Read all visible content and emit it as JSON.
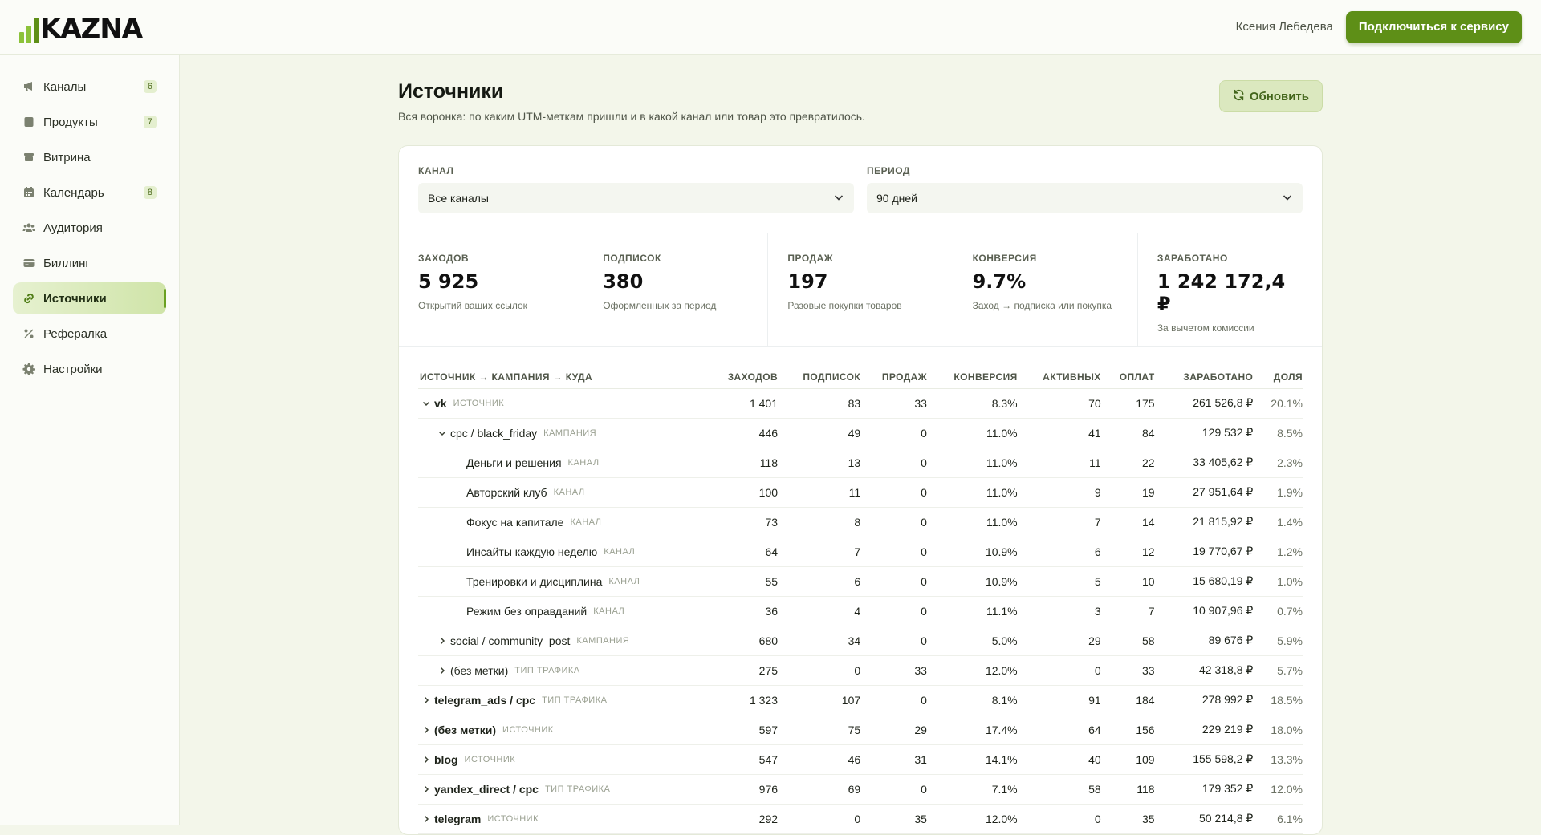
{
  "header": {
    "logo_text": "KAZNA",
    "user_name": "Ксения Лебедева",
    "connect_label": "Подключиться к сервису"
  },
  "sidebar": {
    "items": [
      {
        "label": "Каналы",
        "icon": "megaphone-icon",
        "badge": "6"
      },
      {
        "label": "Продукты",
        "icon": "box-icon",
        "badge": "7"
      },
      {
        "label": "Витрина",
        "icon": "storefront-icon",
        "badge": ""
      },
      {
        "label": "Календарь",
        "icon": "calendar-icon",
        "badge": "8"
      },
      {
        "label": "Аудитория",
        "icon": "users-icon",
        "badge": ""
      },
      {
        "label": "Биллинг",
        "icon": "credit-card-icon",
        "badge": ""
      },
      {
        "label": "Источники",
        "icon": "link-icon",
        "badge": "",
        "active": true
      },
      {
        "label": "Рефералка",
        "icon": "percent-icon",
        "badge": ""
      },
      {
        "label": "Настройки",
        "icon": "gear-icon",
        "badge": ""
      }
    ]
  },
  "page": {
    "title": "Источники",
    "subtitle": "Вся воронка: по каким UTM-меткам пришли и в какой канал или товар это превратилось.",
    "refresh_label": "Обновить"
  },
  "filters": {
    "channel_label": "КАНАЛ",
    "channel_value": "Все каналы",
    "period_label": "ПЕРИОД",
    "period_value": "90 дней"
  },
  "kpis": [
    {
      "label": "ЗАХОДОВ",
      "value": "5 925",
      "desc": "Открытий ваших ссылок"
    },
    {
      "label": "ПОДПИСОК",
      "value": "380",
      "desc": "Оформленных за период"
    },
    {
      "label": "ПРОДАЖ",
      "value": "197",
      "desc": "Разовые покупки товаров"
    },
    {
      "label": "КОНВЕРСИЯ",
      "value": "9.7%",
      "desc": "Заход → подписка или покупка"
    },
    {
      "label": "ЗАРАБОТАНО",
      "value": "1 242 172,4 ₽",
      "desc": "За вычетом комиссии"
    }
  ],
  "table": {
    "columns": [
      "ИСТОЧНИК → КАМПАНИЯ → КУДА",
      "ЗАХОДОВ",
      "ПОДПИСОК",
      "ПРОДАЖ",
      "КОНВЕРСИЯ",
      "АКТИВНЫХ",
      "ОПЛАТ",
      "ЗАРАБОТАНО",
      "ДОЛЯ"
    ],
    "rows": [
      {
        "level": 0,
        "expander": "down",
        "name": "vk",
        "tag": "ИСТОЧНИК",
        "visits": "1 401",
        "subs": "83",
        "sales": "33",
        "conv": "8.3%",
        "active": "70",
        "payments": "175",
        "earned": "261 526,8 ₽",
        "share": "20.1%"
      },
      {
        "level": 1,
        "expander": "down",
        "name": "cpc / black_friday",
        "tag": "КАМПАНИЯ",
        "visits": "446",
        "subs": "49",
        "sales": "0",
        "conv": "11.0%",
        "active": "41",
        "payments": "84",
        "earned": "129 532 ₽",
        "share": "8.5%"
      },
      {
        "level": 2,
        "expander": "none",
        "name": "Деньги и решения",
        "tag": "КАНАЛ",
        "visits": "118",
        "subs": "13",
        "sales": "0",
        "conv": "11.0%",
        "active": "11",
        "payments": "22",
        "earned": "33 405,62 ₽",
        "share": "2.3%"
      },
      {
        "level": 2,
        "expander": "none",
        "name": "Авторский клуб",
        "tag": "КАНАЛ",
        "visits": "100",
        "subs": "11",
        "sales": "0",
        "conv": "11.0%",
        "active": "9",
        "payments": "19",
        "earned": "27 951,64 ₽",
        "share": "1.9%"
      },
      {
        "level": 2,
        "expander": "none",
        "name": "Фокус на капитале",
        "tag": "КАНАЛ",
        "visits": "73",
        "subs": "8",
        "sales": "0",
        "conv": "11.0%",
        "active": "7",
        "payments": "14",
        "earned": "21 815,92 ₽",
        "share": "1.4%"
      },
      {
        "level": 2,
        "expander": "none",
        "name": "Инсайты каждую неделю",
        "tag": "КАНАЛ",
        "visits": "64",
        "subs": "7",
        "sales": "0",
        "conv": "10.9%",
        "active": "6",
        "payments": "12",
        "earned": "19 770,67 ₽",
        "share": "1.2%"
      },
      {
        "level": 2,
        "expander": "none",
        "name": "Тренировки и дисциплина",
        "tag": "КАНАЛ",
        "visits": "55",
        "subs": "6",
        "sales": "0",
        "conv": "10.9%",
        "active": "5",
        "payments": "10",
        "earned": "15 680,19 ₽",
        "share": "1.0%"
      },
      {
        "level": 2,
        "expander": "none",
        "name": "Режим без оправданий",
        "tag": "КАНАЛ",
        "visits": "36",
        "subs": "4",
        "sales": "0",
        "conv": "11.1%",
        "active": "3",
        "payments": "7",
        "earned": "10 907,96 ₽",
        "share": "0.7%"
      },
      {
        "level": 1,
        "expander": "right",
        "name": "social / community_post",
        "tag": "КАМПАНИЯ",
        "visits": "680",
        "subs": "34",
        "sales": "0",
        "conv": "5.0%",
        "active": "29",
        "payments": "58",
        "earned": "89 676 ₽",
        "share": "5.9%"
      },
      {
        "level": 1,
        "expander": "right",
        "name": "(без метки)",
        "tag": "ТИП ТРАФИКА",
        "visits": "275",
        "subs": "0",
        "sales": "33",
        "conv": "12.0%",
        "active": "0",
        "payments": "33",
        "earned": "42 318,8 ₽",
        "share": "5.7%"
      },
      {
        "level": 0,
        "expander": "right",
        "name": "telegram_ads / cpc",
        "tag": "ТИП ТРАФИКА",
        "visits": "1 323",
        "subs": "107",
        "sales": "0",
        "conv": "8.1%",
        "active": "91",
        "payments": "184",
        "earned": "278 992 ₽",
        "share": "18.5%"
      },
      {
        "level": 0,
        "expander": "right",
        "name": "(без метки)",
        "tag": "ИСТОЧНИК",
        "visits": "597",
        "subs": "75",
        "sales": "29",
        "conv": "17.4%",
        "active": "64",
        "payments": "156",
        "earned": "229 219 ₽",
        "share": "18.0%"
      },
      {
        "level": 0,
        "expander": "right",
        "name": "blog",
        "tag": "ИСТОЧНИК",
        "visits": "547",
        "subs": "46",
        "sales": "31",
        "conv": "14.1%",
        "active": "40",
        "payments": "109",
        "earned": "155 598,2 ₽",
        "share": "13.3%"
      },
      {
        "level": 0,
        "expander": "right",
        "name": "yandex_direct / cpc",
        "tag": "ТИП ТРАФИКА",
        "visits": "976",
        "subs": "69",
        "sales": "0",
        "conv": "7.1%",
        "active": "58",
        "payments": "118",
        "earned": "179 352 ₽",
        "share": "12.0%"
      },
      {
        "level": 0,
        "expander": "right",
        "name": "telegram",
        "tag": "ИСТОЧНИК",
        "visits": "292",
        "subs": "0",
        "sales": "35",
        "conv": "12.0%",
        "active": "0",
        "payments": "35",
        "earned": "50 214,8 ₽",
        "share": "6.1%"
      }
    ]
  }
}
